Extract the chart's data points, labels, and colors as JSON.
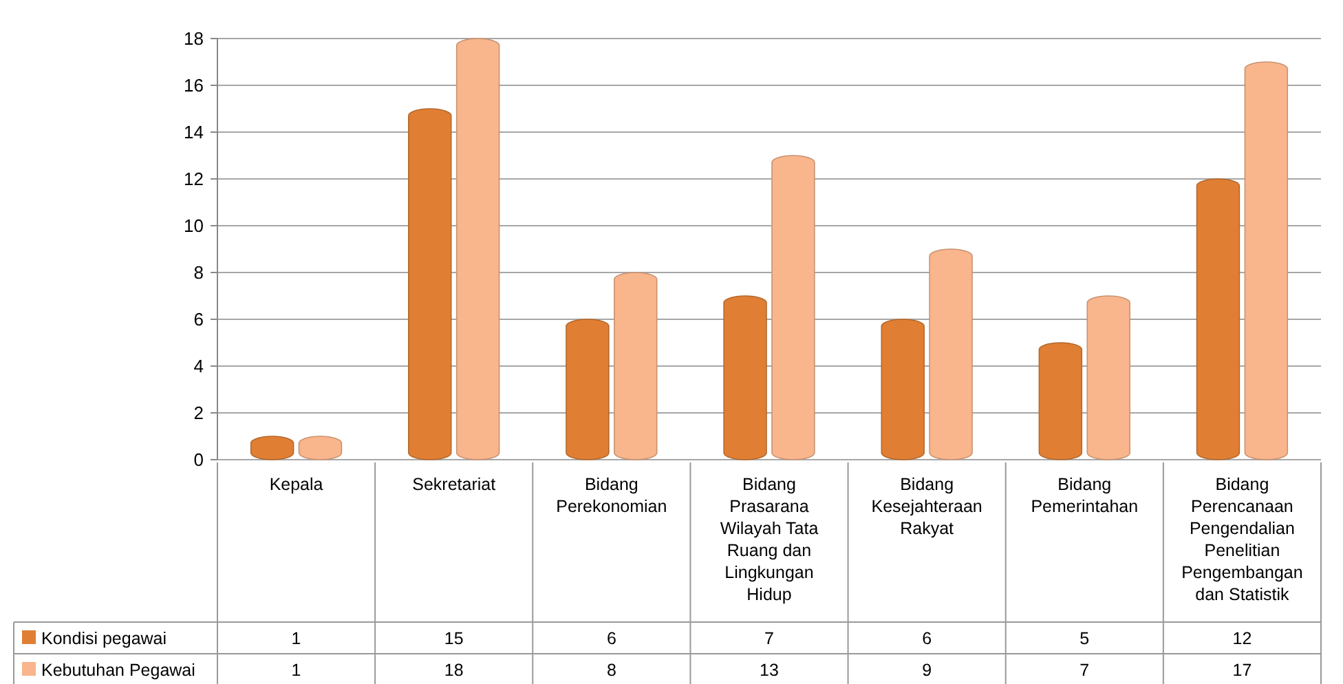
{
  "chart_data": {
    "type": "bar",
    "categories": [
      "Kepala",
      "Sekretariat",
      "Bidang Perekonomian",
      "Bidang Prasarana Wilayah Tata Ruang dan Lingkungan Hidup",
      "Bidang Kesejahteraan Rakyat",
      "Bidang Pemerintahan",
      "Bidang Perencanaan Pengendalian Penelitian Pengembangan dan Statistik"
    ],
    "series": [
      {
        "name": "Kondisi pegawai",
        "color": "#e07f34",
        "values": [
          1,
          15,
          6,
          7,
          6,
          5,
          12
        ]
      },
      {
        "name": "Kebutuhan Pegawai",
        "color": "#f9b58c",
        "values": [
          1,
          18,
          8,
          13,
          9,
          7,
          17
        ]
      }
    ],
    "ylim": [
      0,
      18
    ],
    "yticks": [
      0,
      2,
      4,
      6,
      8,
      10,
      12,
      14,
      16,
      18
    ],
    "grid": "y",
    "legend": "bottom left",
    "data_labels": true
  }
}
